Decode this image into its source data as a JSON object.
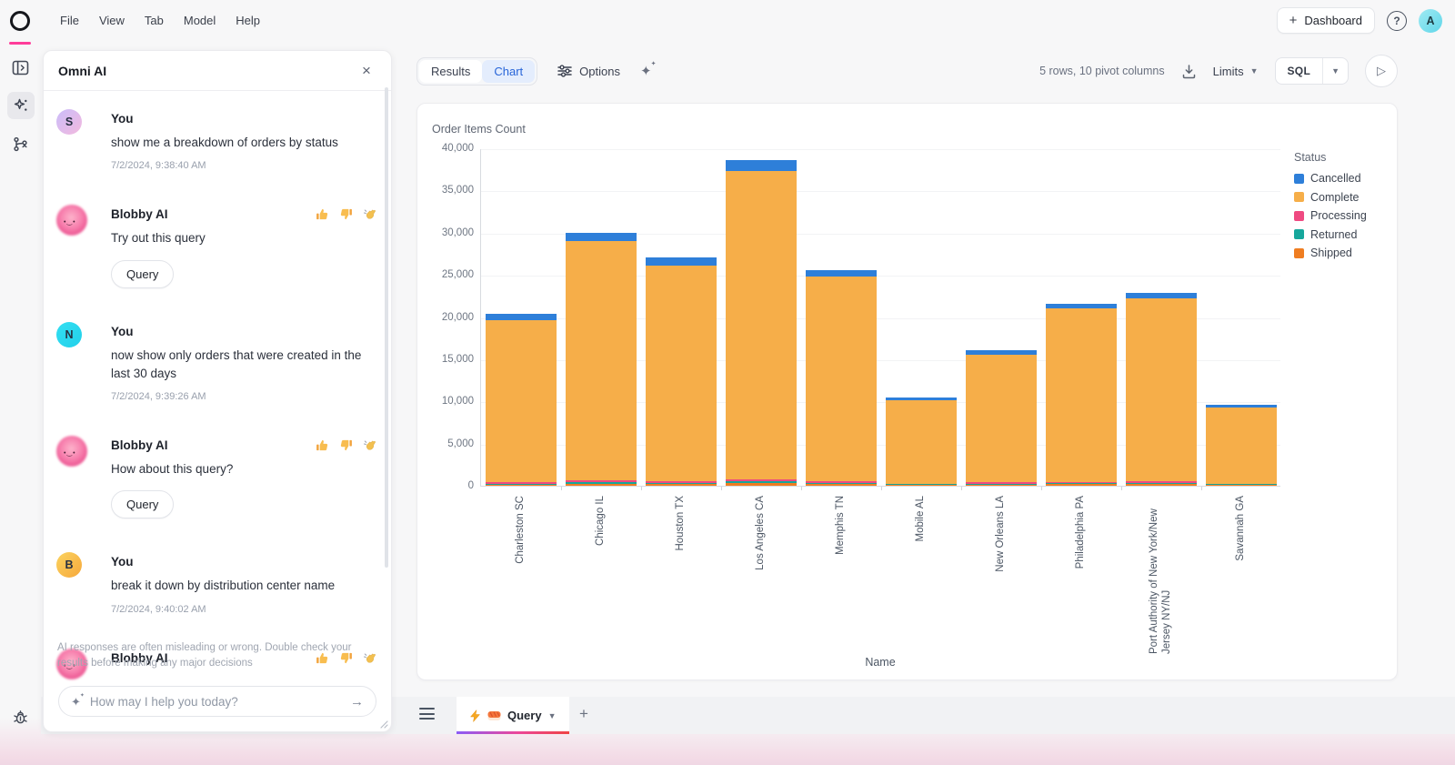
{
  "header": {
    "menus": [
      {
        "label": "File"
      },
      {
        "label": "View"
      },
      {
        "label": "Tab"
      },
      {
        "label": "Model"
      },
      {
        "label": "Help"
      }
    ],
    "dashboard_button": "Dashboard",
    "avatar_initial": "A",
    "avatar_colors": [
      "#9feaf3",
      "#60d6e9"
    ]
  },
  "sidebar": {
    "icons": [
      "panel-toggle",
      "ai-sparkles",
      "branch",
      "bug"
    ],
    "active_icon": "ai-sparkles"
  },
  "chat": {
    "title": "Omni AI",
    "assistant_name": "Blobby AI",
    "messages": [
      {
        "role": "user",
        "avatar_initial": "S",
        "avatar_colors": [
          "#cabdfa",
          "#f3b9de"
        ],
        "author": "You",
        "text": "show me a breakdown of orders by status",
        "timestamp": "7/2/2024, 9:38:40 AM"
      },
      {
        "role": "assistant",
        "author": "Blobby AI",
        "text": "Try out this query",
        "button_label": "Query"
      },
      {
        "role": "user",
        "avatar_initial": "N",
        "avatar_colors": [
          "#33dff2",
          "#22d0ea"
        ],
        "author": "You",
        "text": "now show only orders that were created in the last 30 days",
        "timestamp": "7/2/2024, 9:39:26 AM"
      },
      {
        "role": "assistant",
        "author": "Blobby AI",
        "text": "How about this query?",
        "button_label": "Query"
      },
      {
        "role": "user",
        "avatar_initial": "B",
        "avatar_colors": [
          "#fbd35f",
          "#f6a83c"
        ],
        "author": "You",
        "text": "break it down by distribution center name",
        "timestamp": "7/2/2024, 9:40:02 AM"
      },
      {
        "role": "assistant",
        "author": "Blobby AI"
      }
    ],
    "reaction_icons": [
      "thumbs-up",
      "thumbs-down",
      "wave"
    ],
    "disclaimer": "AI responses are often misleading or wrong. Double check your results before making any major decisions",
    "input_placeholder": "How may I help you today?"
  },
  "toolbar": {
    "tabs": [
      {
        "label": "Results",
        "active": false
      },
      {
        "label": "Chart",
        "active": true
      }
    ],
    "options_label": "Options",
    "rows_info": "5 rows, 10 pivot columns",
    "limits_label": "Limits",
    "sql_label": "SQL"
  },
  "chart_data": {
    "type": "bar",
    "stacked": true,
    "title": "Order Items Count",
    "xlabel": "Name",
    "ylabel": "",
    "legend_title": "Status",
    "legend_position": "right",
    "grid": true,
    "ylim": [
      0,
      40000
    ],
    "yticks": [
      0,
      5000,
      10000,
      15000,
      20000,
      25000,
      30000,
      35000,
      40000
    ],
    "ytick_labels": [
      "0",
      "5,000",
      "10,000",
      "15,000",
      "20,000",
      "25,000",
      "30,000",
      "35,000",
      "40,000"
    ],
    "categories": [
      "Charleston SC",
      "Chicago IL",
      "Houston TX",
      "Los Angeles CA",
      "Memphis TN",
      "Mobile AL",
      "New Orleans LA",
      "Philadelphia PA",
      "Port Authority of New York/New Jersey NY/NJ",
      "Savannah GA"
    ],
    "series": [
      {
        "name": "Cancelled",
        "color": "#2e7fd9",
        "values": [
          750,
          1000,
          950,
          1300,
          850,
          360,
          550,
          550,
          650,
          300
        ]
      },
      {
        "name": "Complete",
        "color": "#f6ae49",
        "values": [
          19240,
          28380,
          25590,
          36580,
          24250,
          9830,
          15170,
          20590,
          21690,
          9040
        ]
      },
      {
        "name": "Processing",
        "color": "#ef4a81",
        "values": [
          140,
          150,
          150,
          200,
          150,
          80,
          110,
          120,
          130,
          70
        ]
      },
      {
        "name": "Returned",
        "color": "#16a79c",
        "values": [
          110,
          210,
          160,
          250,
          150,
          80,
          120,
          140,
          160,
          80
        ]
      },
      {
        "name": "Shipped",
        "color": "#ef7d21",
        "values": [
          160,
          260,
          200,
          320,
          200,
          110,
          150,
          180,
          200,
          100
        ]
      }
    ],
    "stack_order_bottom_to_top": [
      "Shipped",
      "Returned",
      "Processing",
      "Complete",
      "Cancelled"
    ],
    "totals": [
      20400,
      30000,
      27050,
      38650,
      25600,
      10460,
      16100,
      21580,
      22830,
      9590
    ]
  },
  "tabbar": {
    "active_tab_label": "Query"
  }
}
